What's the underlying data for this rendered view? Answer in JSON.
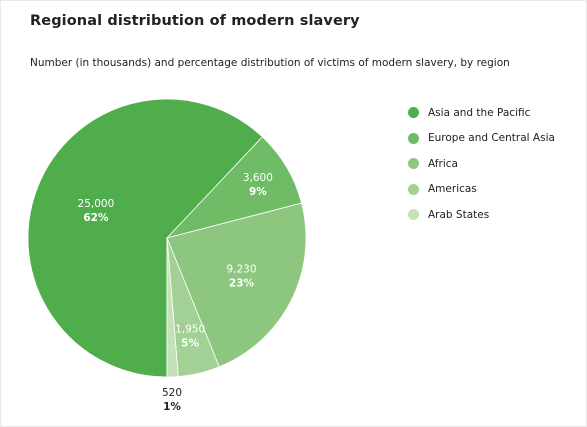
{
  "title": "Regional distribution of modern slavery",
  "subtitle": "Number (in thousands) and percentage distribution of victims of modern slavery, by region",
  "chart_data": {
    "type": "pie",
    "title": "Regional distribution of modern slavery",
    "subtitle": "Number (in thousands) and percentage distribution of victims of modern slavery, by region",
    "legend_position": "right",
    "slices": [
      {
        "name": "Asia and the Pacific",
        "value": 25000,
        "value_label": "25,000",
        "percent_label": "62%",
        "color": "#4fad4c"
      },
      {
        "name": "Europe and Central Asia",
        "value": 3600,
        "value_label": "3,600",
        "percent_label": "9%",
        "color": "#6fbb66"
      },
      {
        "name": "Africa",
        "value": 9230,
        "value_label": "9,230",
        "percent_label": "23%",
        "color": "#8dc67f"
      },
      {
        "name": "Americas",
        "value": 1950,
        "value_label": "1,950",
        "percent_label": "5%",
        "color": "#a2d095"
      },
      {
        "name": "Arab States",
        "value": 520,
        "value_label": "520",
        "percent_label": "1%",
        "color": "#c3e2b7"
      }
    ]
  }
}
